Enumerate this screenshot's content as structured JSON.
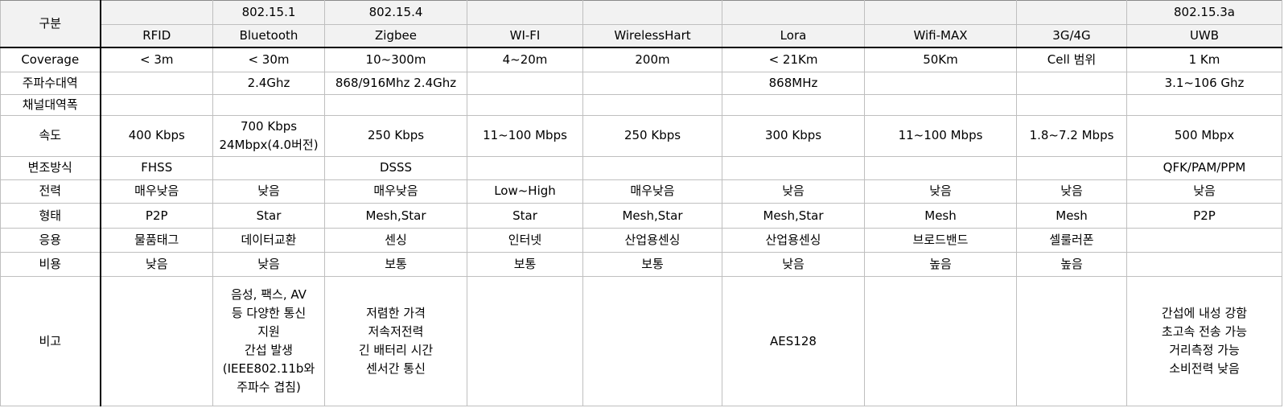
{
  "header": {
    "corner_label": "구분",
    "standards": [
      "",
      "802.15.1",
      "802.15.4",
      "",
      "",
      "",
      "",
      "",
      "802.15.3a"
    ],
    "technologies": [
      "RFID",
      "Bluetooth",
      "Zigbee",
      "WI-FI",
      "WirelessHart",
      "Lora",
      "Wifi-MAX",
      "3G/4G",
      "UWB"
    ]
  },
  "rows": [
    {
      "label": "Coverage",
      "cells": [
        "< 3m",
        "< 30m",
        "10~300m",
        "4~20m",
        "200m",
        "< 21Km",
        "50Km",
        "Cell 범위",
        "1 Km"
      ]
    },
    {
      "label": "주파수대역",
      "cells": [
        "",
        "2.4Ghz",
        "868/916Mhz 2.4Ghz",
        "",
        "",
        "868MHz",
        "",
        "",
        "3.1~106 Ghz"
      ]
    },
    {
      "label": "채널대역폭",
      "cells": [
        "",
        "",
        "",
        "",
        "",
        "",
        "",
        "",
        ""
      ]
    },
    {
      "label": "속도",
      "cells": [
        "400 Kbps",
        "700 Kbps\n24Mbpx(4.0버전)",
        "250 Kbps",
        "11~100 Mbps",
        "250 Kbps",
        "300 Kbps",
        "11~100 Mbps",
        "1.8~7.2 Mbps",
        "500 Mbpx"
      ]
    },
    {
      "label": "변조방식",
      "cells": [
        "FHSS",
        "",
        "DSSS",
        "",
        "",
        "",
        "",
        "",
        "QFK/PAM/PPM"
      ]
    },
    {
      "label": "전력",
      "cells": [
        "매우낮음",
        "낮음",
        "매우낮음",
        "Low~High",
        "매우낮음",
        "낮음",
        "낮음",
        "낮음",
        "낮음"
      ]
    },
    {
      "label": "형태",
      "cells": [
        "P2P",
        "Star",
        "Mesh,Star",
        "Star",
        "Mesh,Star",
        "Mesh,Star",
        "Mesh",
        "Mesh",
        "P2P"
      ]
    },
    {
      "label": "응용",
      "cells": [
        "물품태그",
        "데이터교환",
        "센싱",
        "인터넷",
        "산업용센싱",
        "산업용센싱",
        "브로드밴드",
        "셀룰러폰",
        ""
      ]
    },
    {
      "label": "비용",
      "cells": [
        "낮음",
        "낮음",
        "보통",
        "보통",
        "보통",
        "낮음",
        "높음",
        "높음",
        ""
      ]
    },
    {
      "label": "비고",
      "cells": [
        "",
        "음성, 팩스,  AV\n등 다양한 통신\n지원\n간섭 발생\n(IEEE802.11b와\n주파수 겹침)",
        "저렴한 가격\n저속저전력\n긴 배터리 시간\n센서간 통신",
        "",
        "",
        "AES128",
        "",
        "",
        "간섭에 내성 강함\n초고속 전송 가능\n거리측정 가능\n소비전력 낮음"
      ]
    }
  ]
}
